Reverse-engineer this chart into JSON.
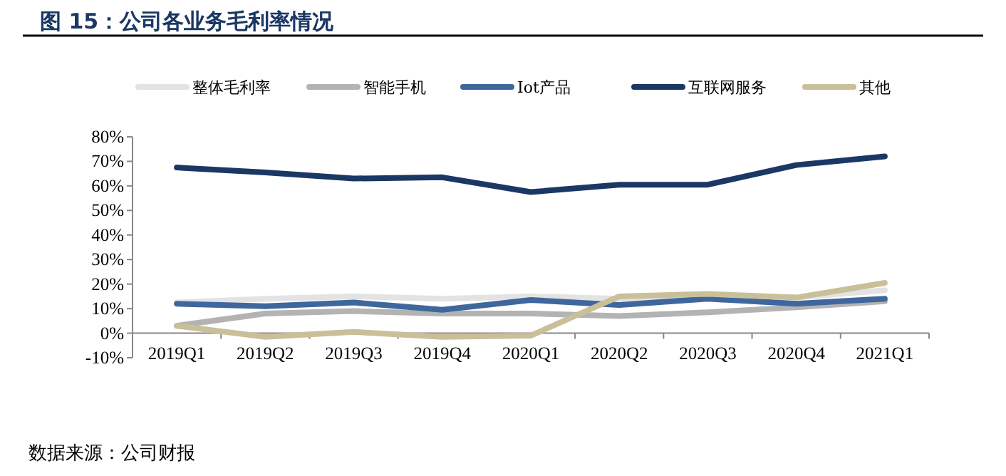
{
  "chart_data": {
    "type": "line",
    "title": "图 15：公司各业务毛利率情况",
    "categories": [
      "2019Q1",
      "2019Q2",
      "2019Q3",
      "2019Q4",
      "2020Q1",
      "2020Q2",
      "2020Q3",
      "2020Q4",
      "2021Q1"
    ],
    "series": [
      {
        "name": "整体毛利率",
        "color": "#e3e3e3",
        "values": [
          12.5,
          14,
          15,
          14,
          15,
          14,
          15.5,
          14.5,
          17.5
        ]
      },
      {
        "name": "智能手机",
        "color": "#b3b3b3",
        "values": [
          3,
          8,
          9,
          8,
          8,
          7,
          8.5,
          10.5,
          13
        ]
      },
      {
        "name": "Iot产品",
        "color": "#3f679e",
        "values": [
          12,
          11,
          12.5,
          9.5,
          13.5,
          11.5,
          14,
          12,
          14
        ]
      },
      {
        "name": "互联网服务",
        "color": "#1b3865",
        "values": [
          67.5,
          65.5,
          63,
          63.5,
          57.5,
          60.5,
          60.5,
          68.5,
          72
        ]
      },
      {
        "name": "其他",
        "color": "#c9c09a",
        "values": [
          3,
          -1.5,
          0.5,
          -1.5,
          -1,
          15,
          16,
          14.5,
          20.5
        ]
      }
    ],
    "ylim": [
      -10,
      80
    ],
    "yticks": [
      {
        "value": -10,
        "label": "-10%"
      },
      {
        "value": 0,
        "label": "0%"
      },
      {
        "value": 10,
        "label": "10%"
      },
      {
        "value": 20,
        "label": "20%"
      },
      {
        "value": 30,
        "label": "30%"
      },
      {
        "value": 40,
        "label": "40%"
      },
      {
        "value": 50,
        "label": "50%"
      },
      {
        "value": 60,
        "label": "60%"
      },
      {
        "value": 70,
        "label": "70%"
      },
      {
        "value": 80,
        "label": "80%"
      }
    ],
    "grid": false,
    "legend": "top",
    "marker": "none",
    "line_style": "solid",
    "annotations": [
      "数据来源：公司财报"
    ]
  }
}
